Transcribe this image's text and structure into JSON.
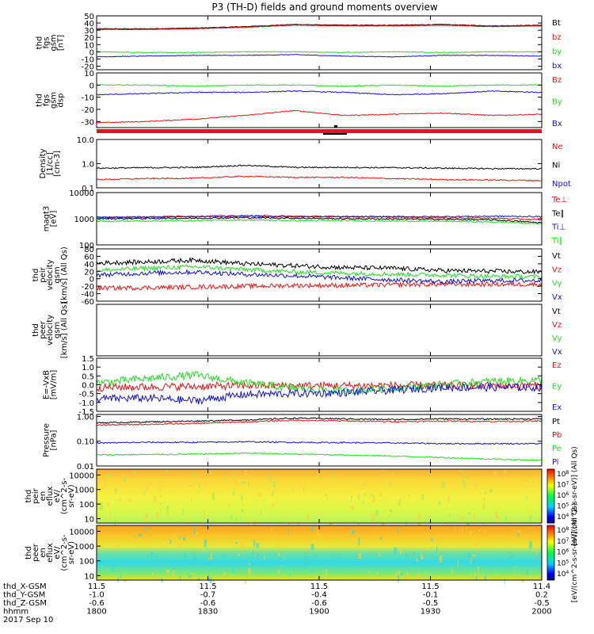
{
  "title": "P3 (TH-D) fields and ground moments overview",
  "colors": {
    "black": "#000000",
    "red": "#ee1111",
    "green": "#22dd22",
    "blue": "#1111dd"
  },
  "chart_data": {
    "type": "line",
    "x": {
      "ticks": [
        "1800",
        "1830",
        "1900",
        "1930",
        "2000"
      ],
      "unit": "hhmm"
    },
    "footer": {
      "rows": [
        {
          "label": "thd_X-GSM",
          "values": [
            "11.5",
            "11.5",
            "11.5",
            "11.5",
            "11.4"
          ]
        },
        {
          "label": "thd_Y-GSM",
          "values": [
            "-1.0",
            "-0.7",
            "-0.4",
            "-0.1",
            "0.2"
          ]
        },
        {
          "label": "thd_Z-GSM",
          "values": [
            "-0.6",
            "-0.6",
            "-0.6",
            "-0.5",
            "-0.5"
          ]
        },
        {
          "label": "hhmm",
          "values": [
            "1800",
            "1830",
            "1900",
            "1930",
            "2000"
          ]
        }
      ],
      "date": "2017 Sep 10"
    },
    "panels": [
      {
        "ylabel": [
          "thd",
          "fgs",
          "gsm",
          "[nT]"
        ],
        "ylim": [
          -25,
          50
        ],
        "scale": "linear",
        "ticks": [
          "50",
          "40",
          "30",
          "20",
          "10",
          "0",
          "-10",
          "-20"
        ],
        "legend": [
          {
            "name": "Bt",
            "color": "black"
          },
          {
            "name": "bz",
            "color": "red"
          },
          {
            "name": "by",
            "color": "green"
          },
          {
            "name": "bx",
            "color": "blue"
          }
        ],
        "series": [
          {
            "name": "Bt",
            "color": "black",
            "values": [
              32,
              32,
              33,
              35,
              38,
              37,
              37,
              38,
              36,
              37
            ]
          },
          {
            "name": "bz",
            "color": "red",
            "values": [
              31,
              31,
              32,
              34,
              37,
              36,
              36,
              37,
              35,
              36
            ]
          },
          {
            "name": "by",
            "color": "green",
            "values": [
              0,
              -1,
              -1,
              0,
              0,
              -1,
              0,
              -1,
              0,
              0
            ]
          },
          {
            "name": "bx",
            "color": "blue",
            "values": [
              -7,
              -6,
              -5,
              -5,
              -4,
              -6,
              -7,
              -5,
              -5,
              -6
            ]
          }
        ]
      },
      {
        "ylabel": [
          "thd",
          "fgs",
          "gsm",
          "dsp"
        ],
        "ylim": [
          -35,
          10
        ],
        "scale": "linear",
        "ticks": [
          "10",
          "0",
          "-10",
          "-20",
          "-30"
        ],
        "legend": [
          {
            "name": "Bz",
            "color": "red"
          },
          {
            "name": "By",
            "color": "green"
          },
          {
            "name": "Bx",
            "color": "blue"
          }
        ],
        "series": [
          {
            "name": "Bz",
            "color": "red",
            "values": [
              -31,
              -30,
              -28,
              -25,
              -21,
              -25,
              -24,
              -23,
              -25,
              -24
            ]
          },
          {
            "name": "By",
            "color": "green",
            "values": [
              0,
              0,
              -1,
              0,
              0,
              -1,
              0,
              -1,
              0,
              0
            ]
          },
          {
            "name": "Bx",
            "color": "blue",
            "values": [
              -8,
              -7,
              -6,
              -6,
              -5,
              -6,
              -8,
              -7,
              -5,
              -6
            ]
          }
        ]
      },
      {
        "ylabel": [
          "Density",
          "[1/cc]",
          "[cm-3]"
        ],
        "ylim": [
          0.1,
          10
        ],
        "scale": "log",
        "ticks": [
          "10.0",
          "1.0",
          "0.1"
        ],
        "legend": [
          {
            "name": "Ne",
            "color": "red"
          },
          {
            "name": "Ni",
            "color": "black"
          },
          {
            "name": "Npot",
            "color": "blue"
          }
        ],
        "series": [
          {
            "name": "Ni",
            "color": "black",
            "values": [
              0.65,
              0.68,
              0.7,
              0.85,
              0.7,
              0.7,
              0.68,
              0.65,
              0.62,
              0.62
            ]
          },
          {
            "name": "Ne",
            "color": "red",
            "values": [
              0.22,
              0.24,
              0.25,
              0.3,
              0.27,
              0.27,
              0.24,
              0.22,
              0.21,
              0.2
            ]
          }
        ]
      },
      {
        "ylabel": [
          "magt3",
          "[eV]"
        ],
        "ylim": [
          100,
          10000
        ],
        "scale": "log",
        "ticks": [
          "10000",
          "1000",
          "100"
        ],
        "legend": [
          {
            "name": "Te⊥",
            "color": "red"
          },
          {
            "name": "Te∥",
            "color": "black"
          },
          {
            "name": "Ti⊥",
            "color": "blue"
          },
          {
            "name": "Ti∥",
            "color": "green"
          }
        ],
        "series": [
          {
            "name": "Te⊥",
            "color": "red",
            "values": [
              1150,
              1200,
              1250,
              1300,
              1250,
              1200,
              1150,
              1100,
              1050,
              900
            ]
          },
          {
            "name": "Te∥",
            "color": "black",
            "values": [
              1000,
              1020,
              1050,
              1100,
              1050,
              1000,
              980,
              950,
              900,
              700
            ]
          },
          {
            "name": "Ti⊥",
            "color": "blue",
            "values": [
              1100,
              1150,
              1200,
              1250,
              1200,
              1200,
              1200,
              1200,
              1250,
              1200
            ]
          },
          {
            "name": "Ti∥",
            "color": "green",
            "values": [
              800,
              820,
              850,
              900,
              850,
              850,
              820,
              800,
              750,
              650
            ]
          }
        ]
      },
      {
        "ylabel": [
          "thd",
          "peir",
          "velocity",
          "gsm",
          "[km/s] (All Qs)"
        ],
        "ylim": [
          -60,
          80
        ],
        "scale": "linear",
        "ticks": [
          "80",
          "60",
          "40",
          "20",
          "0",
          "-20",
          "-40",
          "-60"
        ],
        "legend": [
          {
            "name": "Vt",
            "color": "black"
          },
          {
            "name": "Vz",
            "color": "red"
          },
          {
            "name": "Vy",
            "color": "green"
          },
          {
            "name": "Vx",
            "color": "blue"
          }
        ],
        "series": [
          {
            "name": "Vt",
            "color": "black",
            "values": [
              42,
              45,
              50,
              40,
              35,
              30,
              28,
              22,
              20,
              18
            ]
          },
          {
            "name": "Vz",
            "color": "red",
            "values": [
              -25,
              -24,
              -22,
              -20,
              -18,
              -18,
              -16,
              -15,
              -15,
              -15
            ]
          },
          {
            "name": "Vy",
            "color": "green",
            "values": [
              22,
              28,
              32,
              25,
              18,
              15,
              12,
              10,
              6,
              5
            ]
          },
          {
            "name": "Vx",
            "color": "blue",
            "values": [
              10,
              15,
              18,
              12,
              8,
              2,
              -3,
              -8,
              -5,
              -5
            ]
          }
        ]
      },
      {
        "ylabel": [
          "thd",
          "peer",
          "velocity",
          "gsm",
          "[km/s] (All Qs)"
        ],
        "ylim": [
          -60,
          80
        ],
        "scale": "linear",
        "ticks": [],
        "legend": [
          {
            "name": "Vt",
            "color": "black"
          },
          {
            "name": "Vz",
            "color": "red"
          },
          {
            "name": "Vy",
            "color": "green"
          },
          {
            "name": "Vx",
            "color": "blue"
          }
        ],
        "series": []
      },
      {
        "ylabel": [
          "E=-VxB",
          "[mV/m]"
        ],
        "ylim": [
          -1.5,
          1.5
        ],
        "scale": "linear",
        "ticks": [
          "1.5",
          "1.0",
          "0.5",
          "0.0",
          "-0.5",
          "-1.0",
          "-1.5"
        ],
        "legend": [
          {
            "name": "Ez",
            "color": "red"
          },
          {
            "name": "Ey",
            "color": "green"
          },
          {
            "name": "Ex",
            "color": "blue"
          }
        ],
        "series": [
          {
            "name": "Ez",
            "color": "red",
            "values": [
              -0.15,
              -0.12,
              -0.1,
              -0.05,
              -0.05,
              -0.05,
              -0.05,
              -0.05,
              -0.05,
              -0.05
            ]
          },
          {
            "name": "Ey",
            "color": "green",
            "values": [
              0.1,
              0.35,
              0.55,
              0.1,
              -0.2,
              -0.35,
              -0.2,
              0.0,
              0.2,
              0.25
            ]
          },
          {
            "name": "Ex",
            "color": "blue",
            "values": [
              -0.8,
              -0.75,
              -0.9,
              -0.55,
              -0.5,
              -0.45,
              -0.3,
              -0.15,
              -0.15,
              -0.15
            ]
          }
        ]
      },
      {
        "ylabel": [
          "Pressure",
          "[nPa]"
        ],
        "ylim": [
          0.01,
          1.2
        ],
        "scale": "log",
        "ticks": [
          "1.00",
          "0.10",
          "0.01"
        ],
        "legend": [
          {
            "name": "Pt",
            "color": "black"
          },
          {
            "name": "Pb",
            "color": "red"
          },
          {
            "name": "Pe",
            "color": "green"
          },
          {
            "name": "Pi",
            "color": "blue"
          }
        ],
        "series": [
          {
            "name": "Pt",
            "color": "black",
            "values": [
              0.55,
              0.6,
              0.65,
              0.72,
              0.85,
              0.8,
              0.75,
              0.8,
              0.78,
              0.8
            ]
          },
          {
            "name": "Pb",
            "color": "red",
            "values": [
              0.45,
              0.48,
              0.52,
              0.6,
              0.7,
              0.66,
              0.62,
              0.65,
              0.63,
              0.65
            ]
          },
          {
            "name": "Pi",
            "color": "blue",
            "values": [
              0.085,
              0.09,
              0.09,
              0.095,
              0.09,
              0.088,
              0.085,
              0.08,
              0.08,
              0.08
            ]
          },
          {
            "name": "Pe",
            "color": "green",
            "values": [
              0.028,
              0.029,
              0.03,
              0.033,
              0.03,
              0.028,
              0.025,
              0.022,
              0.019,
              0.017
            ]
          }
        ]
      },
      {
        "type": "heatmap",
        "ylabel": [
          "thd",
          "peir",
          "en",
          "eflux",
          "eV/",
          "(cm^2-s-",
          "sr-eV)"
        ],
        "ylim": [
          5,
          25000
        ],
        "scale": "log",
        "ticks": [
          "10000",
          "1000",
          "100",
          "10"
        ],
        "colorbar": {
          "label": "[eV/(cm^2-s-sr-eV)] (All Qs)",
          "ticks": [
            "10^8",
            "10^7",
            "10^6",
            "10^5",
            "10^4"
          ]
        }
      },
      {
        "type": "heatmap",
        "ylabel": [
          "thd",
          "peer",
          "en",
          "eflux",
          "eV/",
          "(cm^2-s-",
          "sr-eV)"
        ],
        "ylim": [
          5,
          25000
        ],
        "scale": "log",
        "ticks": [
          "10000",
          "1000",
          "100",
          "10"
        ],
        "colorbar": {
          "label": "[eV/(cm^2-s-sr-eV)] (All Qs)",
          "ticks": [
            "10^8",
            "10^7",
            "10^6",
            "10^5",
            "10^4"
          ]
        }
      }
    ]
  }
}
